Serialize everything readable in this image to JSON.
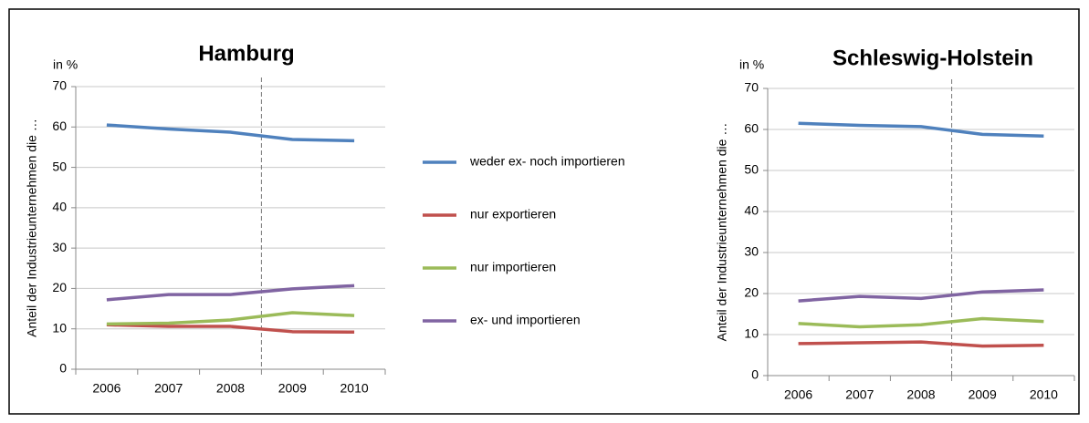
{
  "chart_data": [
    {
      "type": "line",
      "title": "Hamburg",
      "unit_label": "in %",
      "y_label": "Anteil der Industrieunternehmen die …",
      "categories": [
        "2006",
        "2007",
        "2008",
        "2009",
        "2010"
      ],
      "ylim": [
        0,
        70
      ],
      "yticks": [
        0,
        10,
        20,
        30,
        40,
        50,
        60,
        70
      ],
      "grid": true,
      "series": [
        {
          "name": "weder ex- noch importieren",
          "color": "#4f81bd",
          "values": [
            60.5,
            59.5,
            58.7,
            56.9,
            56.6
          ]
        },
        {
          "name": "nur exportieren",
          "color": "#c0504d",
          "values": [
            11.0,
            10.6,
            10.6,
            9.3,
            9.2
          ]
        },
        {
          "name": "nur importieren",
          "color": "#9bbb59",
          "values": [
            11.2,
            11.4,
            12.2,
            14.0,
            13.3
          ]
        },
        {
          "name": "ex- und importieren",
          "color": "#8064a2",
          "values": [
            17.2,
            18.5,
            18.5,
            19.9,
            20.7
          ]
        }
      ]
    },
    {
      "type": "line",
      "title": "Schleswig-Holstein",
      "unit_label": "in %",
      "y_label": "Anteil der Industrieunternehmen die …",
      "categories": [
        "2006",
        "2007",
        "2008",
        "2009",
        "2010"
      ],
      "ylim": [
        0,
        70
      ],
      "yticks": [
        0,
        10,
        20,
        30,
        40,
        50,
        60,
        70
      ],
      "grid": true,
      "series": [
        {
          "color": "#4f81bd",
          "values": [
            61.5,
            61.0,
            60.7,
            58.8,
            58.4
          ]
        },
        {
          "color": "#c0504d",
          "values": [
            7.8,
            8.0,
            8.2,
            7.2,
            7.4
          ]
        },
        {
          "color": "#9bbb59",
          "values": [
            12.7,
            11.9,
            12.4,
            13.9,
            13.2
          ]
        },
        {
          "color": "#8064a2",
          "values": [
            18.2,
            19.3,
            18.8,
            20.4,
            20.9
          ]
        }
      ]
    }
  ]
}
